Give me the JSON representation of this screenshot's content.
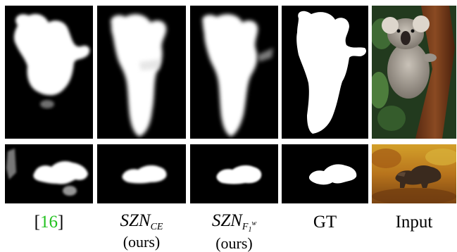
{
  "figure": {
    "rows": [
      {
        "name": "koala",
        "subject": "koala on tree trunk"
      },
      {
        "name": "bear",
        "subject": "bear walking in autumn foliage"
      }
    ],
    "columns": [
      {
        "name": "ref-16",
        "type": "saliency map"
      },
      {
        "name": "szn-ce",
        "type": "saliency map"
      },
      {
        "name": "szn-f1w",
        "type": "saliency map"
      },
      {
        "name": "gt",
        "type": "binary ground-truth mask"
      },
      {
        "name": "input",
        "type": "photograph"
      }
    ],
    "captions": {
      "ref16": {
        "open": "[",
        "num": "16",
        "close": "]"
      },
      "szn_ce": {
        "main": "SZN",
        "sub": "CE",
        "note": "(ours)"
      },
      "szn_f1w": {
        "main": "SZN",
        "sub": "F",
        "sub_sub": "1",
        "sup": "w",
        "note": "(ours)"
      },
      "gt": {
        "main": "GT"
      },
      "input": {
        "main": "Input"
      }
    },
    "colors": {
      "citation": "#22c21f",
      "mask_foreground": "#ffffff",
      "mask_background": "#000000"
    }
  }
}
